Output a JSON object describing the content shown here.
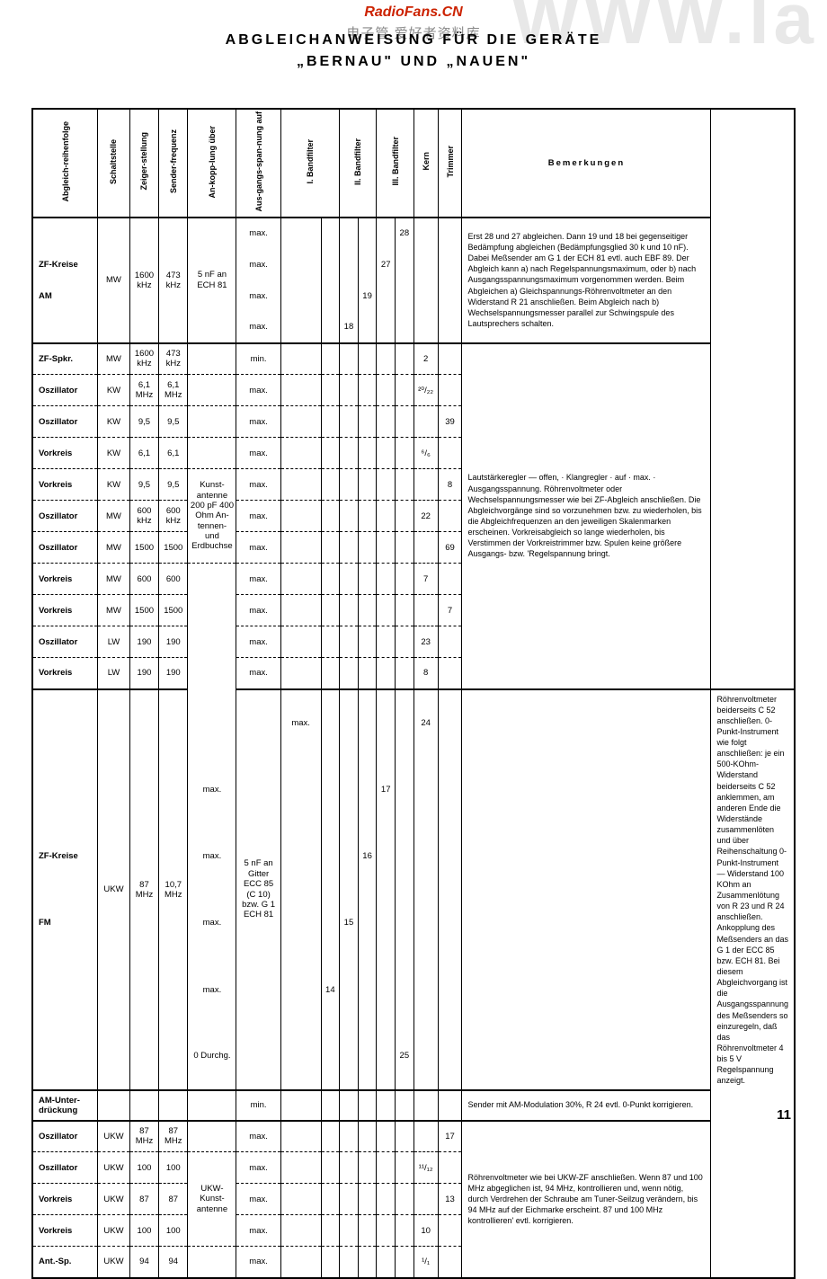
{
  "watermarks": {
    "bg": "WWW.Ia",
    "red": "RadioFans.CN",
    "gray": "电子管 爱好者资料库"
  },
  "title_line1": "ABGLEICHANWEISUNG FÜR DIE GERÄTE",
  "title_line2": "„BERNAU\" UND „NAUEN\"",
  "page_num": "11",
  "headers": {
    "h1": "Abgleich-reihenfolge",
    "h2": "Schaltstelle",
    "h3": "Zeiger-stellung",
    "h4": "Sender-frequenz",
    "h5": "An-kopp-lung über",
    "h6": "Aus-gangs-span-nung auf",
    "h7": "I. Bandfilter",
    "h8": "II. Bandfilter",
    "h9": "III. Bandfilter",
    "h10": "Kern",
    "h11": "Trimmer",
    "h12": "Bemerkungen"
  },
  "sections": [
    {
      "border": "thick",
      "rows": [
        {
          "lbl": "",
          "ss": "",
          "zs": "",
          "sf": "",
          "kopp": "",
          "aus": "max.",
          "f1": "",
          "f2": "",
          "f3": "",
          "f4": "",
          "f5": "",
          "f6": "28",
          "kern": "",
          "trim": ""
        },
        {
          "lbl": "ZF-Kreise",
          "ss": "MW",
          "zs": "1600 kHz",
          "sf": "473 kHz",
          "kopp": "5 nF an ECH 81",
          "aus": "max.",
          "f1": "",
          "f2": "",
          "f3": "",
          "f4": "",
          "f5": "27",
          "f6": "",
          "kern": "",
          "trim": ""
        },
        {
          "lbl": "AM",
          "ss": "",
          "zs": "",
          "sf": "",
          "kopp": "",
          "aus": "max.",
          "f1": "",
          "f2": "",
          "f3": "",
          "f4": "19",
          "f5": "",
          "f6": "",
          "kern": "",
          "trim": ""
        },
        {
          "lbl": "",
          "ss": "",
          "zs": "",
          "sf": "",
          "kopp": "",
          "aus": "max.",
          "f1": "",
          "f2": "",
          "f3": "18",
          "f4": "",
          "f5": "",
          "f6": "",
          "kern": "",
          "trim": ""
        }
      ],
      "span": {
        "lbl": [
          1,
          2
        ],
        "ss": 4,
        "zs": 4,
        "sf": 4,
        "kopp": 4
      },
      "rem": "Erst 28 und 27 abgleichen. Dann 19 und 18 bei gegenseitiger Bedämpfung abgleichen (Bedämpfungsglied 30 k und 10 nF). Dabei Meßsender am G 1 der ECH 81 evtl. auch EBF 89. Der Abgleich kann a) nach Regelspannungsmaximum, oder b) nach Ausgangsspannungsmaximum vorgenommen werden. Beim Abgleichen a) Gleichspannungs-Röhrenvoltmeter an den Widerstand R 21 anschließen. Beim Abgleich nach b) Wechselspannungsmesser parallel zur Schwingspule des Lautsprechers schalten."
    },
    {
      "border": "thick",
      "rows": [
        {
          "lbl": "ZF-Spkr.",
          "ss": "MW",
          "zs": "1600 kHz",
          "sf": "473 kHz",
          "kopp": "",
          "aus": "min.",
          "f1": "",
          "f2": "",
          "f3": "",
          "f4": "",
          "f5": "",
          "f6": "",
          "kern": "2",
          "trim": ""
        },
        {
          "sep": "dash",
          "lbl": "Oszillator",
          "ss": "KW",
          "zs": "6,1 MHz",
          "sf": "6,1 MHz",
          "kopp": "",
          "aus": "max.",
          "f1": "",
          "f2": "",
          "f3": "",
          "f4": "",
          "f5": "",
          "f6": "",
          "kern": "²⁰/₂₂",
          "trim": ""
        },
        {
          "sep": "dash",
          "lbl": "Oszillator",
          "ss": "KW",
          "zs": "9,5",
          "sf": "9,5",
          "kopp": "",
          "aus": "max.",
          "f1": "",
          "f2": "",
          "f3": "",
          "f4": "",
          "f5": "",
          "f6": "",
          "kern": "",
          "trim": "39"
        },
        {
          "sep": "dash",
          "lbl": "Vorkreis",
          "ss": "KW",
          "zs": "6,1",
          "sf": "6,1",
          "kopp": "",
          "aus": "max.",
          "f1": "",
          "f2": "",
          "f3": "",
          "f4": "",
          "f5": "",
          "f6": "",
          "kern": "⁶/₆",
          "trim": ""
        },
        {
          "sep": "dash",
          "lbl": "Vorkreis",
          "ss": "KW",
          "zs": "9,5",
          "sf": "9,5",
          "kopp": "Kunst-antenne 200 pF",
          "aus": "max.",
          "f1": "",
          "f2": "",
          "f3": "",
          "f4": "",
          "f5": "",
          "f6": "",
          "kern": "",
          "trim": "8"
        },
        {
          "sep": "dash",
          "lbl": "Oszillator",
          "ss": "MW",
          "zs": "600 kHz",
          "sf": "600 kHz",
          "kopp": "400 Ohm An-",
          "aus": "max.",
          "f1": "",
          "f2": "",
          "f3": "",
          "f4": "",
          "f5": "",
          "f6": "",
          "kern": "22",
          "trim": ""
        },
        {
          "sep": "dash",
          "lbl": "Oszillator",
          "ss": "MW",
          "zs": "1500",
          "sf": "1500",
          "kopp": "tennen- und Erdbuchse",
          "aus": "max.",
          "f1": "",
          "f2": "",
          "f3": "",
          "f4": "",
          "f5": "",
          "f6": "",
          "kern": "",
          "trim": "69"
        },
        {
          "sep": "dash",
          "lbl": "Vorkreis",
          "ss": "MW",
          "zs": "600",
          "sf": "600",
          "kopp": "",
          "aus": "max.",
          "f1": "",
          "f2": "",
          "f3": "",
          "f4": "",
          "f5": "",
          "f6": "",
          "kern": "7",
          "trim": ""
        },
        {
          "sep": "dash",
          "lbl": "Vorkreis",
          "ss": "MW",
          "zs": "1500",
          "sf": "1500",
          "kopp": "",
          "aus": "max.",
          "f1": "",
          "f2": "",
          "f3": "",
          "f4": "",
          "f5": "",
          "f6": "",
          "kern": "",
          "trim": "7"
        },
        {
          "sep": "dash",
          "lbl": "Oszillator",
          "ss": "LW",
          "zs": "190",
          "sf": "190",
          "kopp": "",
          "aus": "max.",
          "f1": "",
          "f2": "",
          "f3": "",
          "f4": "",
          "f5": "",
          "f6": "",
          "kern": "23",
          "trim": ""
        },
        {
          "sep": "dash",
          "lbl": "Vorkreis",
          "ss": "LW",
          "zs": "190",
          "sf": "190",
          "kopp": "",
          "aus": "max.",
          "f1": "",
          "f2": "",
          "f3": "",
          "f4": "",
          "f5": "",
          "f6": "",
          "kern": "8",
          "trim": ""
        }
      ],
      "koppspan": [
        {
          "start": 4,
          "len": 3
        },
        {
          "start": 7,
          "len": 5
        }
      ],
      "rem": "Lautstärkeregler — offen, · Klangregler · auf · max. · Ausgangsspannung. Röhrenvoltmeter oder Wechselspannungsmesser wie bei ZF-Abgleich anschließen. Die Abgleichvorgänge sind so vorzunehmen bzw. zu wiederholen, bis die Abgleichfrequenzen an den jeweiligen Skalenmarken erscheinen. Vorkreisabgleich so lange wiederholen, bis Verstimmen der Vorkreistrimmer bzw. Spulen keine größere Ausgangs- bzw. 'Regelspannung bringt."
    },
    {
      "border": "thick",
      "rows": [
        {
          "lbl": "",
          "ss": "",
          "zs": "",
          "sf": "",
          "kopp": "",
          "aus": "max.",
          "f1": "",
          "f2": "",
          "f3": "",
          "f4": "",
          "f5": "",
          "f6": "24",
          "kern": "",
          "trim": ""
        },
        {
          "lbl": "",
          "ss": "",
          "zs": "",
          "sf": "",
          "kopp": "",
          "aus": "max.",
          "f1": "",
          "f2": "",
          "f3": "",
          "f4": "",
          "f5": "17",
          "f6": "",
          "kern": "",
          "trim": ""
        },
        {
          "lbl": "ZF-Kreise",
          "ss": "UKW",
          "zs": "87 MHz",
          "sf": "10,7 MHz",
          "kopp": "5 nF an Gitter ECC 85 (C 10) bzw. G 1 ECH 81",
          "aus": "max.",
          "f1": "",
          "f2": "",
          "f3": "",
          "f4": "16",
          "f5": "",
          "f6": "",
          "kern": "",
          "trim": ""
        },
        {
          "lbl": "FM",
          "ss": "",
          "zs": "",
          "sf": "",
          "kopp": "",
          "aus": "max.",
          "f1": "",
          "f2": "",
          "f3": "15",
          "f4": "",
          "f5": "",
          "f6": "",
          "kern": "",
          "trim": ""
        },
        {
          "lbl": "",
          "ss": "",
          "zs": "",
          "sf": "",
          "kopp": "",
          "aus": "max.",
          "f1": "",
          "f2": "14",
          "f3": "",
          "f4": "",
          "f5": "",
          "f6": "",
          "kern": "",
          "trim": ""
        },
        {
          "lbl": "",
          "ss": "",
          "zs": "",
          "sf": "",
          "kopp": "",
          "aus": "0 Durchg.",
          "f1": "",
          "f2": "",
          "f3": "",
          "f4": "",
          "f5": "",
          "f6": "25",
          "kern": "",
          "trim": ""
        }
      ],
      "span": {
        "lbl": [
          2,
          3
        ],
        "ss": 6,
        "zs": 6,
        "sf": 6,
        "kopp": 6
      },
      "rem": "Röhrenvoltmeter beiderseits C 52 anschließen. 0-Punkt-Instrument wie folgt anschließen: je ein 500-KOhm-Widerstand beiderseits C 52 anklemmen, am anderen Ende die Widerstände zusammenlöten und über Reihenschaltung 0-Punkt-Instrument — Widerstand 100 KOhm an Zusammenlötung von R 23 und R 24 anschließen. Ankopplung des Meßsenders an das G 1 der ECC 85 bzw. ECH 81. Bei diesem Abgleichvorgang ist die Ausgangsspannung des Meßsenders so einzuregeln, daß das Röhrenvoltmeter 4 bis 5 V Regelspannung anzeigt."
    },
    {
      "border": "thick",
      "rows": [
        {
          "lbl": "AM-Unter-drückung",
          "ss": "",
          "zs": "",
          "sf": "",
          "kopp": "",
          "aus": "min.",
          "f1": "",
          "f2": "",
          "f3": "",
          "f4": "",
          "f5": "",
          "f6": "",
          "kern": "",
          "trim": ""
        }
      ],
      "rem": "Sender mit AM-Modulation 30%, R 24 evtl. 0-Punkt korrigieren."
    },
    {
      "border": "thick",
      "rows": [
        {
          "lbl": "Oszillator",
          "ss": "UKW",
          "zs": "87 MHz",
          "sf": "87 MHz",
          "kopp": "",
          "aus": "max.",
          "f1": "",
          "f2": "",
          "f3": "",
          "f4": "",
          "f5": "",
          "f6": "",
          "kern": "",
          "trim": "17"
        },
        {
          "sep": "dash",
          "lbl": "Oszillator",
          "ss": "UKW",
          "zs": "100",
          "sf": "100",
          "kopp": "UKW-Kunst-antenne",
          "aus": "max.",
          "f1": "",
          "f2": "",
          "f3": "",
          "f4": "",
          "f5": "",
          "f6": "",
          "kern": "¹¹/₁₂",
          "trim": ""
        },
        {
          "sep": "dash",
          "lbl": "Vorkreis",
          "ss": "UKW",
          "zs": "87",
          "sf": "87",
          "kopp": "",
          "aus": "max.",
          "f1": "",
          "f2": "",
          "f3": "",
          "f4": "",
          "f5": "",
          "f6": "",
          "kern": "",
          "trim": "13"
        },
        {
          "sep": "dash",
          "lbl": "Vorkreis",
          "ss": "UKW",
          "zs": "100",
          "sf": "100",
          "kopp": "",
          "aus": "max.",
          "f1": "",
          "f2": "",
          "f3": "",
          "f4": "",
          "f5": "",
          "f6": "",
          "kern": "10",
          "trim": ""
        },
        {
          "sep": "dash",
          "lbl": "Ant.-Sp.",
          "ss": "UKW",
          "zs": "94",
          "sf": "94",
          "kopp": "",
          "aus": "max.",
          "f1": "",
          "f2": "",
          "f3": "",
          "f4": "",
          "f5": "",
          "f6": "",
          "kern": "¹/₁",
          "trim": ""
        }
      ],
      "koppspan": [
        {
          "start": 1,
          "len": 3
        },
        {
          "start": 4,
          "len": 2
        }
      ],
      "rem": "Röhrenvoltmeter wie bei UKW-ZF anschließen. Wenn 87 und 100 MHz abgeglichen ist, 94 MHz, kontrollieren und, wenn nötig, durch Verdrehen der Schraube am Tuner-Seilzug verändern, bis 94 MHz auf der Eichmarke erscheint. 87 und 100 MHz kontrollieren' evtl. korrigieren."
    }
  ]
}
